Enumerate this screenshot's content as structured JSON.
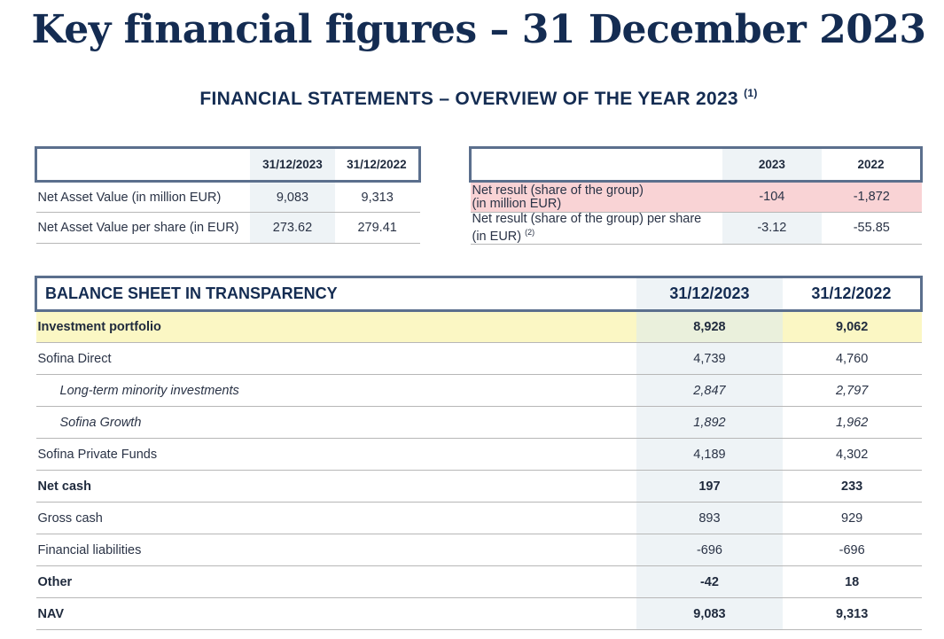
{
  "page": {
    "title": "Key financial figures – 31 December 2023",
    "subtitle": "FINANCIAL STATEMENTS – OVERVIEW OF THE YEAR 2023",
    "subtitle_note": "(1)"
  },
  "nav_table": {
    "headers": [
      "",
      "31/12/2023",
      "31/12/2022"
    ],
    "rows": [
      {
        "label": "Net Asset Value (in million EUR)",
        "v2023": "9,083",
        "v2022": "9,313"
      },
      {
        "label": "Net Asset Value per share (in EUR)",
        "v2023": "273.62",
        "v2022": "279.41"
      }
    ]
  },
  "result_table": {
    "headers": [
      "",
      "2023",
      "2022"
    ],
    "rows": [
      {
        "label_line1": "Net result (share of the group)",
        "label_line2": "(in million EUR)",
        "note": "",
        "v2023": "-104",
        "v2022": "-1,872"
      },
      {
        "label_line1": "Net result (share of the group) per share",
        "label_line2": "(in EUR)",
        "note": "(2)",
        "v2023": "-3.12",
        "v2022": "-55.85"
      }
    ],
    "highlight_color": "#f9d3d5"
  },
  "balance_sheet": {
    "title": "BALANCE SHEET IN TRANSPARENCY",
    "col_2023": "31/12/2023",
    "col_2022": "31/12/2022",
    "rows": [
      {
        "label": "Investment portfolio",
        "v2023": "8,928",
        "v2022": "9,062"
      },
      {
        "label": "Sofina Direct",
        "v2023": "4,739",
        "v2022": "4,760"
      },
      {
        "label": "Long-term minority investments",
        "v2023": "2,847",
        "v2022": "2,797"
      },
      {
        "label": "Sofina Growth",
        "v2023": "1,892",
        "v2022": "1,962"
      },
      {
        "label": "Sofina Private Funds",
        "v2023": "4,189",
        "v2022": "4,302"
      },
      {
        "label": "Net cash",
        "v2023": "197",
        "v2022": "233"
      },
      {
        "label": "Gross cash",
        "v2023": "893",
        "v2022": "929"
      },
      {
        "label": "Financial liabilities",
        "v2023": "-696",
        "v2022": "-696"
      },
      {
        "label": "Other",
        "v2023": "-42",
        "v2022": "18"
      },
      {
        "label": "NAV",
        "v2023": "9,083",
        "v2022": "9,313"
      }
    ],
    "highlight_color": "#fbf7c4"
  },
  "colors": {
    "title": "#142c52",
    "header_border": "#5b6f8d",
    "shaded_column": "#eef3f6"
  }
}
